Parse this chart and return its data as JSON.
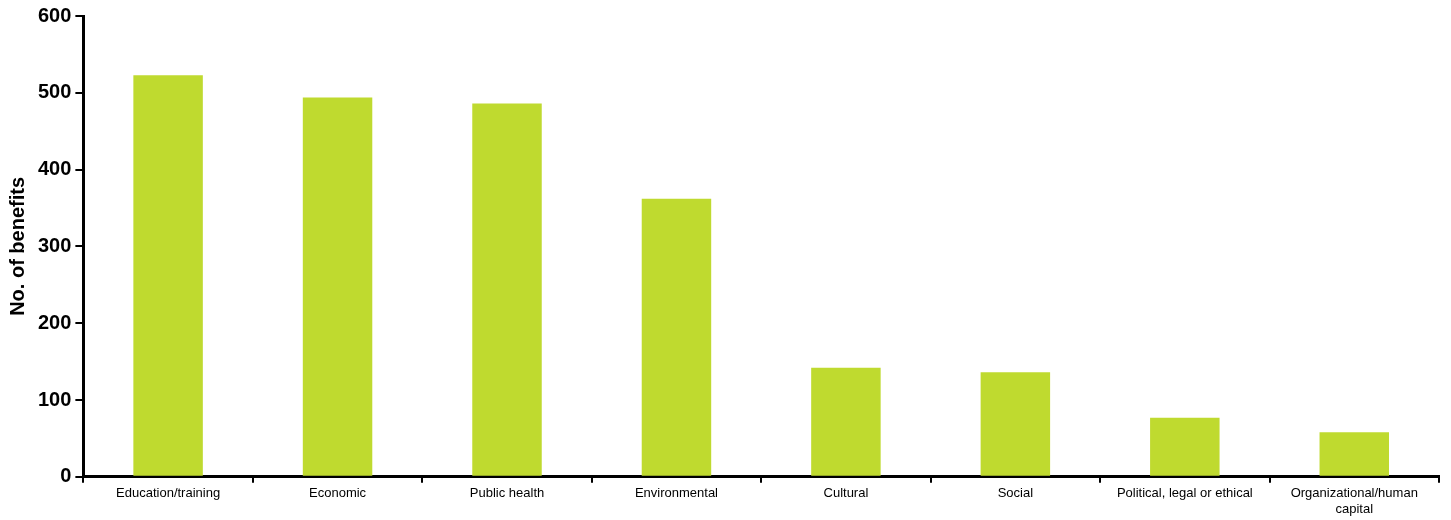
{
  "chart_data": {
    "type": "bar",
    "ylabel": "No. of benefits",
    "categories": [
      "Education/training",
      "Economic",
      "Public health",
      "Environmental",
      "Cultural",
      "Social",
      "Political, legal or ethical",
      "Organizational/human capital"
    ],
    "values": [
      523,
      494,
      486,
      362,
      142,
      136,
      77,
      58
    ],
    "color": "#bfda2f",
    "ylim": [
      0,
      600
    ],
    "yticks": [
      0,
      100,
      200,
      300,
      400,
      500,
      600
    ],
    "grid": false,
    "legend": false
  }
}
